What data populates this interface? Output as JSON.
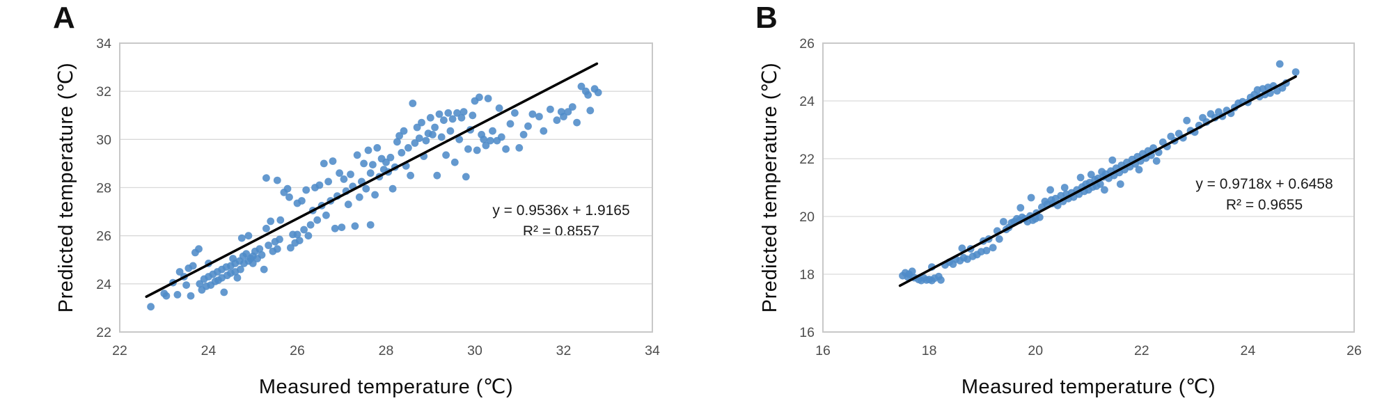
{
  "figure": {
    "background": "#ffffff"
  },
  "colors": {
    "marker": "#4e8bc8",
    "trendline": "#000000",
    "gridline": "#d9d9d9",
    "plot_border": "#c8c8c8",
    "tick_text": "#4d4d4d",
    "title_text": "#0d0d0d"
  },
  "chart_data": [
    {
      "type": "scatter",
      "panel_label": "A",
      "xlabel": "Measured temperature (℃)",
      "ylabel": "Predicted temperature (℃)",
      "equation": "y = 0.9536x + 1.9165",
      "r2_label": "R² = 0.8557",
      "xlim": [
        22,
        34
      ],
      "ylim": [
        22,
        34
      ],
      "x_ticks": [
        22,
        24,
        26,
        28,
        30,
        32,
        34
      ],
      "y_ticks": [
        22,
        24,
        26,
        28,
        30,
        32,
        34
      ],
      "grid": "horizontal-only",
      "legend": "none",
      "marker_color": "#4e8bc8",
      "trendline": {
        "slope": 0.9536,
        "intercept": 1.9165,
        "x_start": 22.6,
        "x_end": 32.75,
        "color": "#000000"
      },
      "points": [
        [
          22.7,
          23.05
        ],
        [
          23.0,
          23.6
        ],
        [
          23.05,
          23.5
        ],
        [
          23.2,
          24.05
        ],
        [
          23.3,
          23.55
        ],
        [
          23.35,
          24.5
        ],
        [
          23.45,
          24.3
        ],
        [
          23.5,
          23.95
        ],
        [
          23.55,
          24.65
        ],
        [
          23.6,
          23.5
        ],
        [
          23.65,
          24.75
        ],
        [
          23.7,
          25.3
        ],
        [
          23.78,
          25.45
        ],
        [
          23.8,
          24.0
        ],
        [
          23.85,
          23.75
        ],
        [
          23.9,
          24.2
        ],
        [
          23.95,
          23.9
        ],
        [
          24.0,
          24.85
        ],
        [
          24.0,
          24.3
        ],
        [
          24.05,
          23.95
        ],
        [
          24.1,
          24.4
        ],
        [
          24.15,
          24.1
        ],
        [
          24.2,
          24.5
        ],
        [
          24.22,
          24.15
        ],
        [
          24.3,
          24.6
        ],
        [
          24.3,
          24.25
        ],
        [
          24.35,
          23.65
        ],
        [
          24.4,
          24.7
        ],
        [
          24.42,
          24.35
        ],
        [
          24.5,
          24.75
        ],
        [
          24.5,
          24.45
        ],
        [
          24.55,
          25.05
        ],
        [
          24.6,
          24.85
        ],
        [
          24.6,
          24.5
        ],
        [
          24.65,
          24.25
        ],
        [
          24.7,
          24.95
        ],
        [
          24.72,
          24.6
        ],
        [
          24.78,
          25.15
        ],
        [
          24.8,
          24.85
        ],
        [
          24.85,
          25.25
        ],
        [
          24.9,
          24.95
        ],
        [
          24.95,
          25.05
        ],
        [
          24.9,
          26.0
        ],
        [
          24.75,
          25.9
        ],
        [
          25.0,
          25.15
        ],
        [
          25.0,
          24.85
        ],
        [
          25.05,
          25.35
        ],
        [
          25.1,
          25.05
        ],
        [
          25.15,
          25.45
        ],
        [
          25.2,
          25.2
        ],
        [
          25.25,
          24.6
        ],
        [
          25.3,
          28.4
        ],
        [
          25.55,
          28.3
        ],
        [
          25.35,
          25.6
        ],
        [
          25.45,
          25.35
        ],
        [
          25.5,
          25.75
        ],
        [
          25.55,
          25.45
        ],
        [
          25.6,
          25.85
        ],
        [
          25.62,
          26.65
        ],
        [
          25.7,
          27.8
        ],
        [
          25.78,
          27.95
        ],
        [
          25.82,
          27.6
        ],
        [
          25.85,
          25.5
        ],
        [
          25.9,
          26.05
        ],
        [
          25.95,
          25.7
        ],
        [
          25.3,
          26.3
        ],
        [
          25.4,
          26.6
        ],
        [
          26.0,
          27.35
        ],
        [
          26.0,
          26.05
        ],
        [
          26.05,
          25.8
        ],
        [
          26.1,
          27.45
        ],
        [
          26.15,
          26.25
        ],
        [
          26.2,
          27.9
        ],
        [
          26.25,
          26.0
        ],
        [
          26.3,
          26.45
        ],
        [
          26.35,
          27.05
        ],
        [
          26.4,
          28.0
        ],
        [
          26.45,
          26.65
        ],
        [
          26.5,
          28.1
        ],
        [
          26.55,
          27.25
        ],
        [
          26.6,
          29.0
        ],
        [
          26.65,
          26.85
        ],
        [
          26.7,
          28.25
        ],
        [
          26.75,
          27.45
        ],
        [
          26.8,
          29.1
        ],
        [
          26.85,
          26.3
        ],
        [
          26.9,
          27.65
        ],
        [
          26.95,
          28.6
        ],
        [
          27.0,
          26.35
        ],
        [
          27.3,
          26.4
        ],
        [
          27.65,
          26.45
        ],
        [
          27.05,
          28.35
        ],
        [
          27.1,
          27.85
        ],
        [
          27.15,
          27.3
        ],
        [
          27.2,
          28.55
        ],
        [
          27.25,
          28.05
        ],
        [
          27.35,
          29.35
        ],
        [
          27.4,
          27.6
        ],
        [
          27.45,
          28.25
        ],
        [
          27.5,
          29.0
        ],
        [
          27.55,
          27.95
        ],
        [
          27.6,
          29.55
        ],
        [
          27.65,
          28.6
        ],
        [
          27.7,
          28.95
        ],
        [
          27.75,
          27.7
        ],
        [
          27.8,
          29.65
        ],
        [
          27.85,
          28.45
        ],
        [
          27.9,
          29.2
        ],
        [
          27.95,
          28.75
        ],
        [
          28.0,
          29.05
        ],
        [
          28.05,
          28.65
        ],
        [
          28.1,
          29.25
        ],
        [
          28.15,
          27.95
        ],
        [
          28.2,
          28.85
        ],
        [
          28.25,
          29.9
        ],
        [
          28.3,
          30.15
        ],
        [
          28.35,
          29.45
        ],
        [
          28.4,
          30.35
        ],
        [
          28.45,
          28.9
        ],
        [
          28.5,
          29.65
        ],
        [
          28.55,
          28.5
        ],
        [
          28.6,
          31.5
        ],
        [
          28.65,
          29.85
        ],
        [
          28.7,
          30.5
        ],
        [
          28.75,
          30.05
        ],
        [
          28.8,
          30.7
        ],
        [
          28.85,
          29.3
        ],
        [
          28.9,
          29.95
        ],
        [
          28.95,
          30.25
        ],
        [
          29.0,
          30.9
        ],
        [
          29.05,
          30.2
        ],
        [
          29.1,
          30.5
        ],
        [
          29.15,
          28.5
        ],
        [
          29.2,
          31.05
        ],
        [
          29.25,
          30.1
        ],
        [
          29.3,
          30.8
        ],
        [
          29.35,
          29.35
        ],
        [
          29.4,
          31.1
        ],
        [
          29.45,
          30.35
        ],
        [
          29.5,
          30.85
        ],
        [
          29.55,
          29.05
        ],
        [
          29.6,
          31.1
        ],
        [
          29.65,
          30.0
        ],
        [
          29.7,
          30.9
        ],
        [
          29.75,
          31.15
        ],
        [
          29.8,
          28.45
        ],
        [
          29.85,
          29.6
        ],
        [
          29.9,
          30.4
        ],
        [
          29.95,
          31.0
        ],
        [
          30.0,
          31.6
        ],
        [
          30.05,
          29.55
        ],
        [
          30.1,
          31.75
        ],
        [
          30.15,
          30.2
        ],
        [
          30.2,
          30.0
        ],
        [
          30.25,
          29.75
        ],
        [
          30.3,
          31.7
        ],
        [
          30.35,
          29.95
        ],
        [
          30.4,
          30.35
        ],
        [
          30.5,
          29.95
        ],
        [
          30.55,
          31.3
        ],
        [
          30.6,
          30.1
        ],
        [
          30.7,
          29.6
        ],
        [
          30.8,
          30.65
        ],
        [
          30.9,
          31.1
        ],
        [
          31.0,
          29.65
        ],
        [
          31.1,
          30.2
        ],
        [
          31.2,
          30.55
        ],
        [
          31.3,
          31.05
        ],
        [
          31.45,
          30.95
        ],
        [
          31.55,
          30.35
        ],
        [
          31.7,
          31.25
        ],
        [
          31.85,
          30.8
        ],
        [
          31.95,
          31.15
        ],
        [
          32.0,
          30.95
        ],
        [
          32.1,
          31.15
        ],
        [
          32.2,
          31.35
        ],
        [
          32.3,
          30.7
        ],
        [
          32.4,
          32.2
        ],
        [
          32.5,
          32.0
        ],
        [
          32.55,
          31.85
        ],
        [
          32.6,
          31.2
        ],
        [
          32.7,
          32.1
        ],
        [
          32.78,
          31.95
        ]
      ]
    },
    {
      "type": "scatter",
      "panel_label": "B",
      "xlabel": "Measured temperature (℃)",
      "ylabel": "Predicted temperature (℃)",
      "equation": "y = 0.9718x + 0.6458",
      "r2_label": "R² = 0.9655",
      "xlim": [
        16,
        26
      ],
      "ylim": [
        16,
        26
      ],
      "x_ticks": [
        16,
        18,
        20,
        22,
        24,
        26
      ],
      "y_ticks": [
        16,
        18,
        20,
        22,
        24,
        26
      ],
      "grid": "horizontal-only",
      "legend": "none",
      "marker_color": "#4e8bc8",
      "trendline": {
        "slope": 0.9718,
        "intercept": 0.6458,
        "x_start": 17.45,
        "x_end": 24.9,
        "color": "#000000"
      },
      "points": [
        [
          17.5,
          17.95
        ],
        [
          17.55,
          18.05
        ],
        [
          17.6,
          17.9
        ],
        [
          17.68,
          18.1
        ],
        [
          17.72,
          17.88
        ],
        [
          17.8,
          17.82
        ],
        [
          17.85,
          17.78
        ],
        [
          17.9,
          17.87
        ],
        [
          17.95,
          17.8
        ],
        [
          18.0,
          17.82
        ],
        [
          18.05,
          17.78
        ],
        [
          18.1,
          17.86
        ],
        [
          18.18,
          17.92
        ],
        [
          18.22,
          17.8
        ],
        [
          18.05,
          18.25
        ],
        [
          17.62,
          18.0
        ],
        [
          18.3,
          18.32
        ],
        [
          18.38,
          18.42
        ],
        [
          18.45,
          18.35
        ],
        [
          18.5,
          18.52
        ],
        [
          18.58,
          18.47
        ],
        [
          18.62,
          18.9
        ],
        [
          18.65,
          18.57
        ],
        [
          18.72,
          18.52
        ],
        [
          18.78,
          18.88
        ],
        [
          18.82,
          18.62
        ],
        [
          18.9,
          18.68
        ],
        [
          18.98,
          18.78
        ],
        [
          19.02,
          19.15
        ],
        [
          19.08,
          18.82
        ],
        [
          19.12,
          19.22
        ],
        [
          19.2,
          18.92
        ],
        [
          19.28,
          19.5
        ],
        [
          19.32,
          19.22
        ],
        [
          19.4,
          19.82
        ],
        [
          19.45,
          19.55
        ],
        [
          19.5,
          19.62
        ],
        [
          19.55,
          19.78
        ],
        [
          19.6,
          19.82
        ],
        [
          19.65,
          19.92
        ],
        [
          19.7,
          19.87
        ],
        [
          19.72,
          20.3
        ],
        [
          19.75,
          19.97
        ],
        [
          19.8,
          19.92
        ],
        [
          19.85,
          19.82
        ],
        [
          19.9,
          20.02
        ],
        [
          19.92,
          20.65
        ],
        [
          19.95,
          19.87
        ],
        [
          20.0,
          19.92
        ],
        [
          20.02,
          20.12
        ],
        [
          20.08,
          19.97
        ],
        [
          20.12,
          20.32
        ],
        [
          20.18,
          20.52
        ],
        [
          20.22,
          20.42
        ],
        [
          20.28,
          20.92
        ],
        [
          20.3,
          20.57
        ],
        [
          20.32,
          20.45
        ],
        [
          20.38,
          20.62
        ],
        [
          20.42,
          20.38
        ],
        [
          20.48,
          20.72
        ],
        [
          20.52,
          20.52
        ],
        [
          20.55,
          21.0
        ],
        [
          20.58,
          20.77
        ],
        [
          20.62,
          20.62
        ],
        [
          20.68,
          20.82
        ],
        [
          20.72,
          20.67
        ],
        [
          20.78,
          20.92
        ],
        [
          20.82,
          20.77
        ],
        [
          20.85,
          21.35
        ],
        [
          20.88,
          21.02
        ],
        [
          20.92,
          20.87
        ],
        [
          20.95,
          21.12
        ],
        [
          21.0,
          20.92
        ],
        [
          21.02,
          21.17
        ],
        [
          21.05,
          21.45
        ],
        [
          21.08,
          21.02
        ],
        [
          21.12,
          21.27
        ],
        [
          21.15,
          21.05
        ],
        [
          21.18,
          21.32
        ],
        [
          21.22,
          21.12
        ],
        [
          21.25,
          21.55
        ],
        [
          21.28,
          21.37
        ],
        [
          21.3,
          20.92
        ],
        [
          21.32,
          21.47
        ],
        [
          21.38,
          21.32
        ],
        [
          21.42,
          21.57
        ],
        [
          21.45,
          21.95
        ],
        [
          21.48,
          21.42
        ],
        [
          21.52,
          21.67
        ],
        [
          21.58,
          21.52
        ],
        [
          21.6,
          21.12
        ],
        [
          21.62,
          21.77
        ],
        [
          21.68,
          21.62
        ],
        [
          21.72,
          21.87
        ],
        [
          21.78,
          21.72
        ],
        [
          21.82,
          21.97
        ],
        [
          21.88,
          21.82
        ],
        [
          21.92,
          22.07
        ],
        [
          21.95,
          21.62
        ],
        [
          21.98,
          21.92
        ],
        [
          22.02,
          22.17
        ],
        [
          22.08,
          22.02
        ],
        [
          22.12,
          22.27
        ],
        [
          22.18,
          22.12
        ],
        [
          22.22,
          22.37
        ],
        [
          22.28,
          21.92
        ],
        [
          22.32,
          22.22
        ],
        [
          22.4,
          22.57
        ],
        [
          22.48,
          22.42
        ],
        [
          22.55,
          22.77
        ],
        [
          22.62,
          22.62
        ],
        [
          22.7,
          22.87
        ],
        [
          22.78,
          22.72
        ],
        [
          22.85,
          23.32
        ],
        [
          22.92,
          22.97
        ],
        [
          23.0,
          22.92
        ],
        [
          23.08,
          23.15
        ],
        [
          23.15,
          23.42
        ],
        [
          23.22,
          23.27
        ],
        [
          23.3,
          23.55
        ],
        [
          23.38,
          23.42
        ],
        [
          23.45,
          23.62
        ],
        [
          23.52,
          23.47
        ],
        [
          23.6,
          23.67
        ],
        [
          23.68,
          23.57
        ],
        [
          23.75,
          23.77
        ],
        [
          23.82,
          23.92
        ],
        [
          23.9,
          23.97
        ],
        [
          24.0,
          23.95
        ],
        [
          24.05,
          24.12
        ],
        [
          24.12,
          24.22
        ],
        [
          24.18,
          24.38
        ],
        [
          24.22,
          24.15
        ],
        [
          24.28,
          24.42
        ],
        [
          24.32,
          24.22
        ],
        [
          24.38,
          24.47
        ],
        [
          24.42,
          24.27
        ],
        [
          24.48,
          24.52
        ],
        [
          24.55,
          24.35
        ],
        [
          24.6,
          25.28
        ],
        [
          24.65,
          24.45
        ],
        [
          24.72,
          24.62
        ],
        [
          24.9,
          25.0
        ]
      ]
    }
  ]
}
